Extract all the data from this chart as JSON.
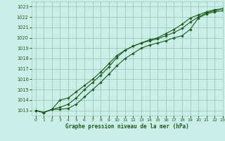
{
  "title": "Graphe pression niveau de la mer (hPa)",
  "bg_color": "#cceee8",
  "grid_color": "#99ccbb",
  "line_color": "#1a5c1a",
  "xlim": [
    -0.5,
    23
  ],
  "ylim": [
    1012.5,
    1023.5
  ],
  "xticks": [
    0,
    1,
    2,
    3,
    4,
    5,
    6,
    7,
    8,
    9,
    10,
    11,
    12,
    13,
    14,
    15,
    16,
    17,
    18,
    19,
    20,
    21,
    22,
    23
  ],
  "yticks": [
    1013,
    1014,
    1015,
    1016,
    1017,
    1018,
    1019,
    1020,
    1021,
    1022,
    1023
  ],
  "line1_x": [
    0,
    1,
    2,
    3,
    4,
    5,
    6,
    7,
    8,
    9,
    10,
    11,
    12,
    13,
    14,
    15,
    16,
    17,
    18,
    19,
    20,
    21,
    22,
    23
  ],
  "line1_y": [
    1013.0,
    1012.8,
    1013.1,
    1013.1,
    1013.2,
    1013.6,
    1014.3,
    1015.0,
    1015.7,
    1016.5,
    1017.3,
    1018.0,
    1018.5,
    1019.0,
    1019.3,
    1019.5,
    1019.7,
    1020.0,
    1020.2,
    1020.8,
    1021.9,
    1022.3,
    1022.5,
    1022.6
  ],
  "line2_x": [
    0,
    1,
    2,
    3,
    4,
    5,
    6,
    7,
    8,
    9,
    10,
    11,
    12,
    13,
    14,
    15,
    16,
    17,
    18,
    19,
    20,
    21,
    22,
    23
  ],
  "line2_y": [
    1013.0,
    1012.8,
    1013.1,
    1013.3,
    1013.6,
    1014.2,
    1015.0,
    1015.7,
    1016.4,
    1017.2,
    1018.1,
    1018.8,
    1019.2,
    1019.5,
    1019.7,
    1019.9,
    1020.2,
    1020.5,
    1020.9,
    1021.5,
    1022.0,
    1022.4,
    1022.6,
    1022.8
  ],
  "line3_x": [
    0,
    1,
    2,
    3,
    4,
    5,
    6,
    7,
    8,
    9,
    10,
    11,
    12,
    13,
    14,
    15,
    16,
    17,
    18,
    19,
    20,
    21,
    22,
    23
  ],
  "line3_y": [
    1013.0,
    1012.8,
    1013.1,
    1014.0,
    1014.2,
    1014.8,
    1015.4,
    1016.0,
    1016.7,
    1017.5,
    1018.3,
    1018.8,
    1019.2,
    1019.5,
    1019.8,
    1020.0,
    1020.4,
    1020.8,
    1021.3,
    1021.9,
    1022.2,
    1022.5,
    1022.7,
    1022.8
  ]
}
